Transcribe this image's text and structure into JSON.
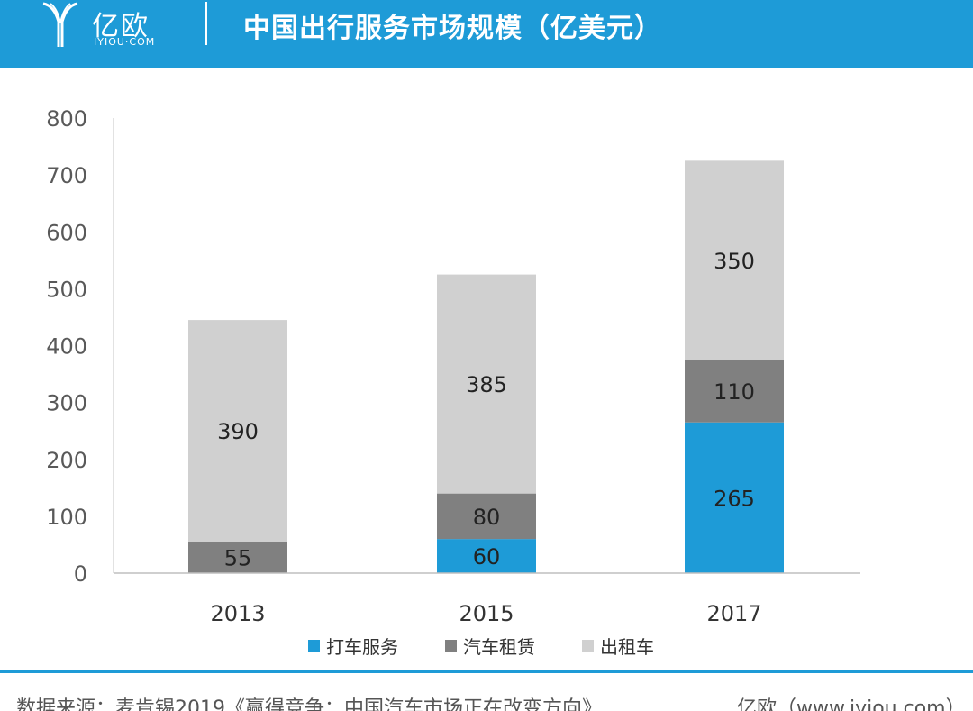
{
  "header": {
    "logo_cn": "亿欧",
    "logo_en": "IYIOU·COM",
    "title": "中国出行服务市场规模（亿美元）",
    "background_color": "#1e9bd7"
  },
  "chart_data": {
    "type": "bar",
    "stacked": true,
    "categories": [
      "2013",
      "2015",
      "2017"
    ],
    "series": [
      {
        "name": "打车服务",
        "values": [
          0,
          60,
          265
        ],
        "color": "#1e9bd7"
      },
      {
        "name": "汽车租赁",
        "values": [
          55,
          80,
          110
        ],
        "color": "#808080"
      },
      {
        "name": "出租车",
        "values": [
          390,
          385,
          350
        ],
        "color": "#d0d0d0"
      }
    ],
    "data_labels": [
      [
        "",
        "60",
        "265"
      ],
      [
        "55",
        "80",
        "110"
      ],
      [
        "390",
        "385",
        "350"
      ]
    ],
    "y_ticks": [
      "0",
      "100",
      "200",
      "300",
      "400",
      "500",
      "600",
      "700",
      "800"
    ],
    "ylim": [
      0,
      800
    ],
    "grid": false,
    "legend_position": "bottom",
    "title": "",
    "xlabel": "",
    "ylabel": ""
  },
  "footer": {
    "source": "数据来源：麦肯锡2019《赢得竞争：中国汽车市场正在改变方向》",
    "brand": "亿欧（www.iyiou.com）",
    "line_color": "#1e9bd7"
  }
}
